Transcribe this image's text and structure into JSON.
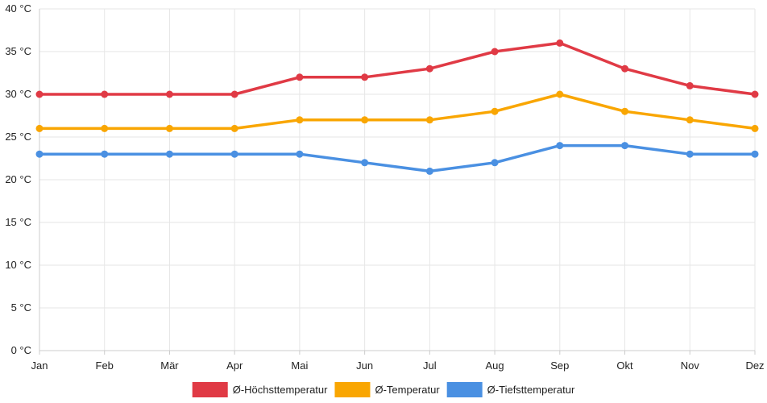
{
  "chart_data": {
    "type": "line",
    "title": "",
    "xlabel": "",
    "ylabel": "",
    "categories": [
      "Jan",
      "Feb",
      "Mär",
      "Apr",
      "Mai",
      "Jun",
      "Jul",
      "Aug",
      "Sep",
      "Okt",
      "Nov",
      "Dez"
    ],
    "ylim": [
      0,
      40
    ],
    "yticks": [
      0,
      5,
      10,
      15,
      20,
      25,
      30,
      35,
      40
    ],
    "ytick_labels": [
      "0 °C",
      "5 °C",
      "10 °C",
      "15 °C",
      "20 °C",
      "25 °C",
      "30 °C",
      "35 °C",
      "40 °C"
    ],
    "grid": true,
    "legend_position": "bottom-center",
    "series": [
      {
        "name": "Ø-Höchsttemperatur",
        "color": "#e03a45",
        "values": [
          30,
          30,
          30,
          30,
          32,
          32,
          33,
          35,
          36,
          33,
          31,
          30
        ]
      },
      {
        "name": "Ø-Temperatur",
        "color": "#f9a602",
        "values": [
          26,
          26,
          26,
          26,
          27,
          27,
          27,
          28,
          30,
          28,
          27,
          26
        ]
      },
      {
        "name": "Ø-Tiefsttemperatur",
        "color": "#4a90e2",
        "values": [
          23,
          23,
          23,
          23,
          23,
          22,
          21,
          22,
          24,
          24,
          23,
          23
        ]
      }
    ]
  }
}
